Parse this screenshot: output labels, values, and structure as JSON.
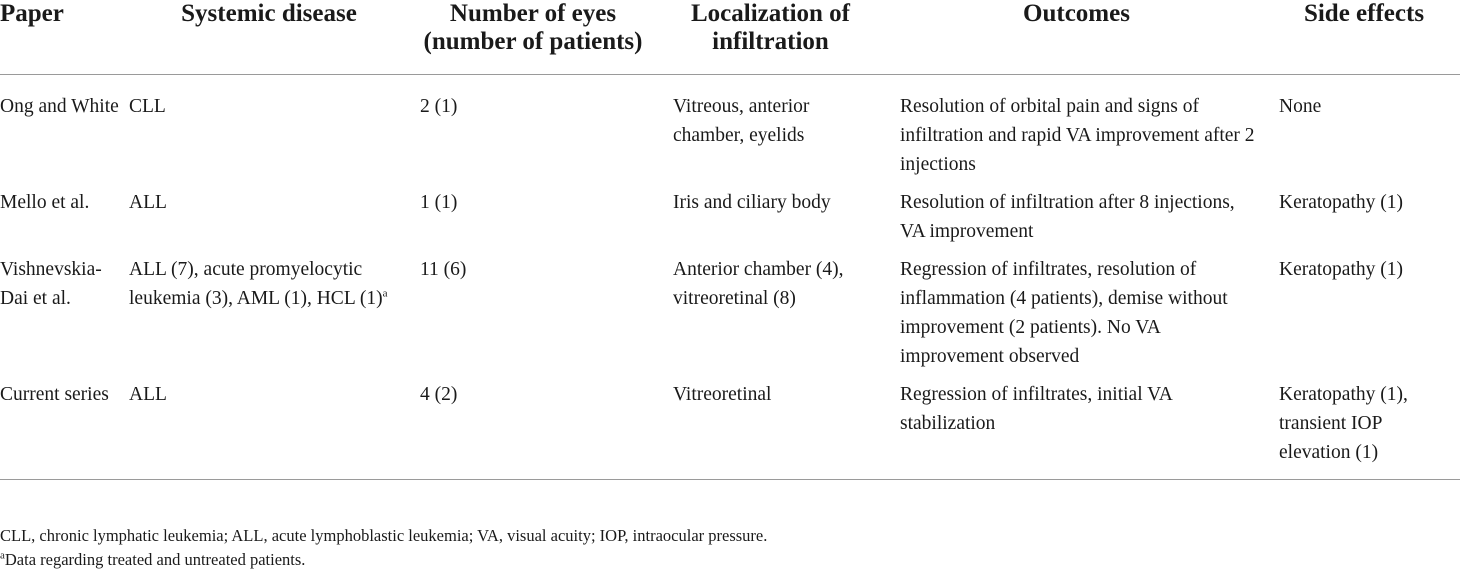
{
  "table": {
    "headers": {
      "paper": "Paper",
      "systemic_disease": "Systemic disease",
      "number_of_eyes": "Number of eyes (number of patients)",
      "localization": "Localization of infiltration",
      "outcomes": "Outcomes",
      "side_effects": "Side effects"
    },
    "rows": [
      {
        "paper": "Ong and White",
        "systemic_disease": "CLL",
        "systemic_disease_sup": "",
        "number_of_eyes": "2 (1)",
        "localization": "Vitreous, anterior chamber, eyelids",
        "outcomes": "Resolution of orbital pain and signs of infiltration and rapid VA improvement after 2 injections",
        "side_effects": "None"
      },
      {
        "paper": "Mello et al.",
        "systemic_disease": "ALL",
        "systemic_disease_sup": "",
        "number_of_eyes": "1 (1)",
        "localization": "Iris and ciliary body",
        "outcomes": "Resolution of infiltration after 8 injections, VA improvement",
        "side_effects": "Keratopathy (1)"
      },
      {
        "paper": "Vishnevskia-Dai et al.",
        "systemic_disease": "ALL (7), acute promyelocytic leukemia (3), AML (1), HCL (1)",
        "systemic_disease_sup": "a",
        "number_of_eyes": "11 (6)",
        "localization": "Anterior chamber (4), vitreoretinal (8)",
        "outcomes": "Regression of infiltrates, resolution of inflammation (4 patients), demise without improvement (2 patients). No VA improvement observed",
        "side_effects": "Keratopathy (1)"
      },
      {
        "paper": "Current series",
        "systemic_disease": "ALL",
        "systemic_disease_sup": "",
        "number_of_eyes": "4 (2)",
        "localization": "Vitreoretinal",
        "outcomes": "Regression of infiltrates, initial VA stabilization",
        "side_effects": "Keratopathy (1), transient IOP elevation (1)"
      }
    ]
  },
  "footnotes": {
    "abbreviations": "CLL, chronic lymphatic leukemia; ALL, acute lymphoblastic leukemia; VA, visual acuity; IOP, intraocular pressure.",
    "note_marker": "a",
    "note_text": "Data regarding treated and untreated patients."
  }
}
